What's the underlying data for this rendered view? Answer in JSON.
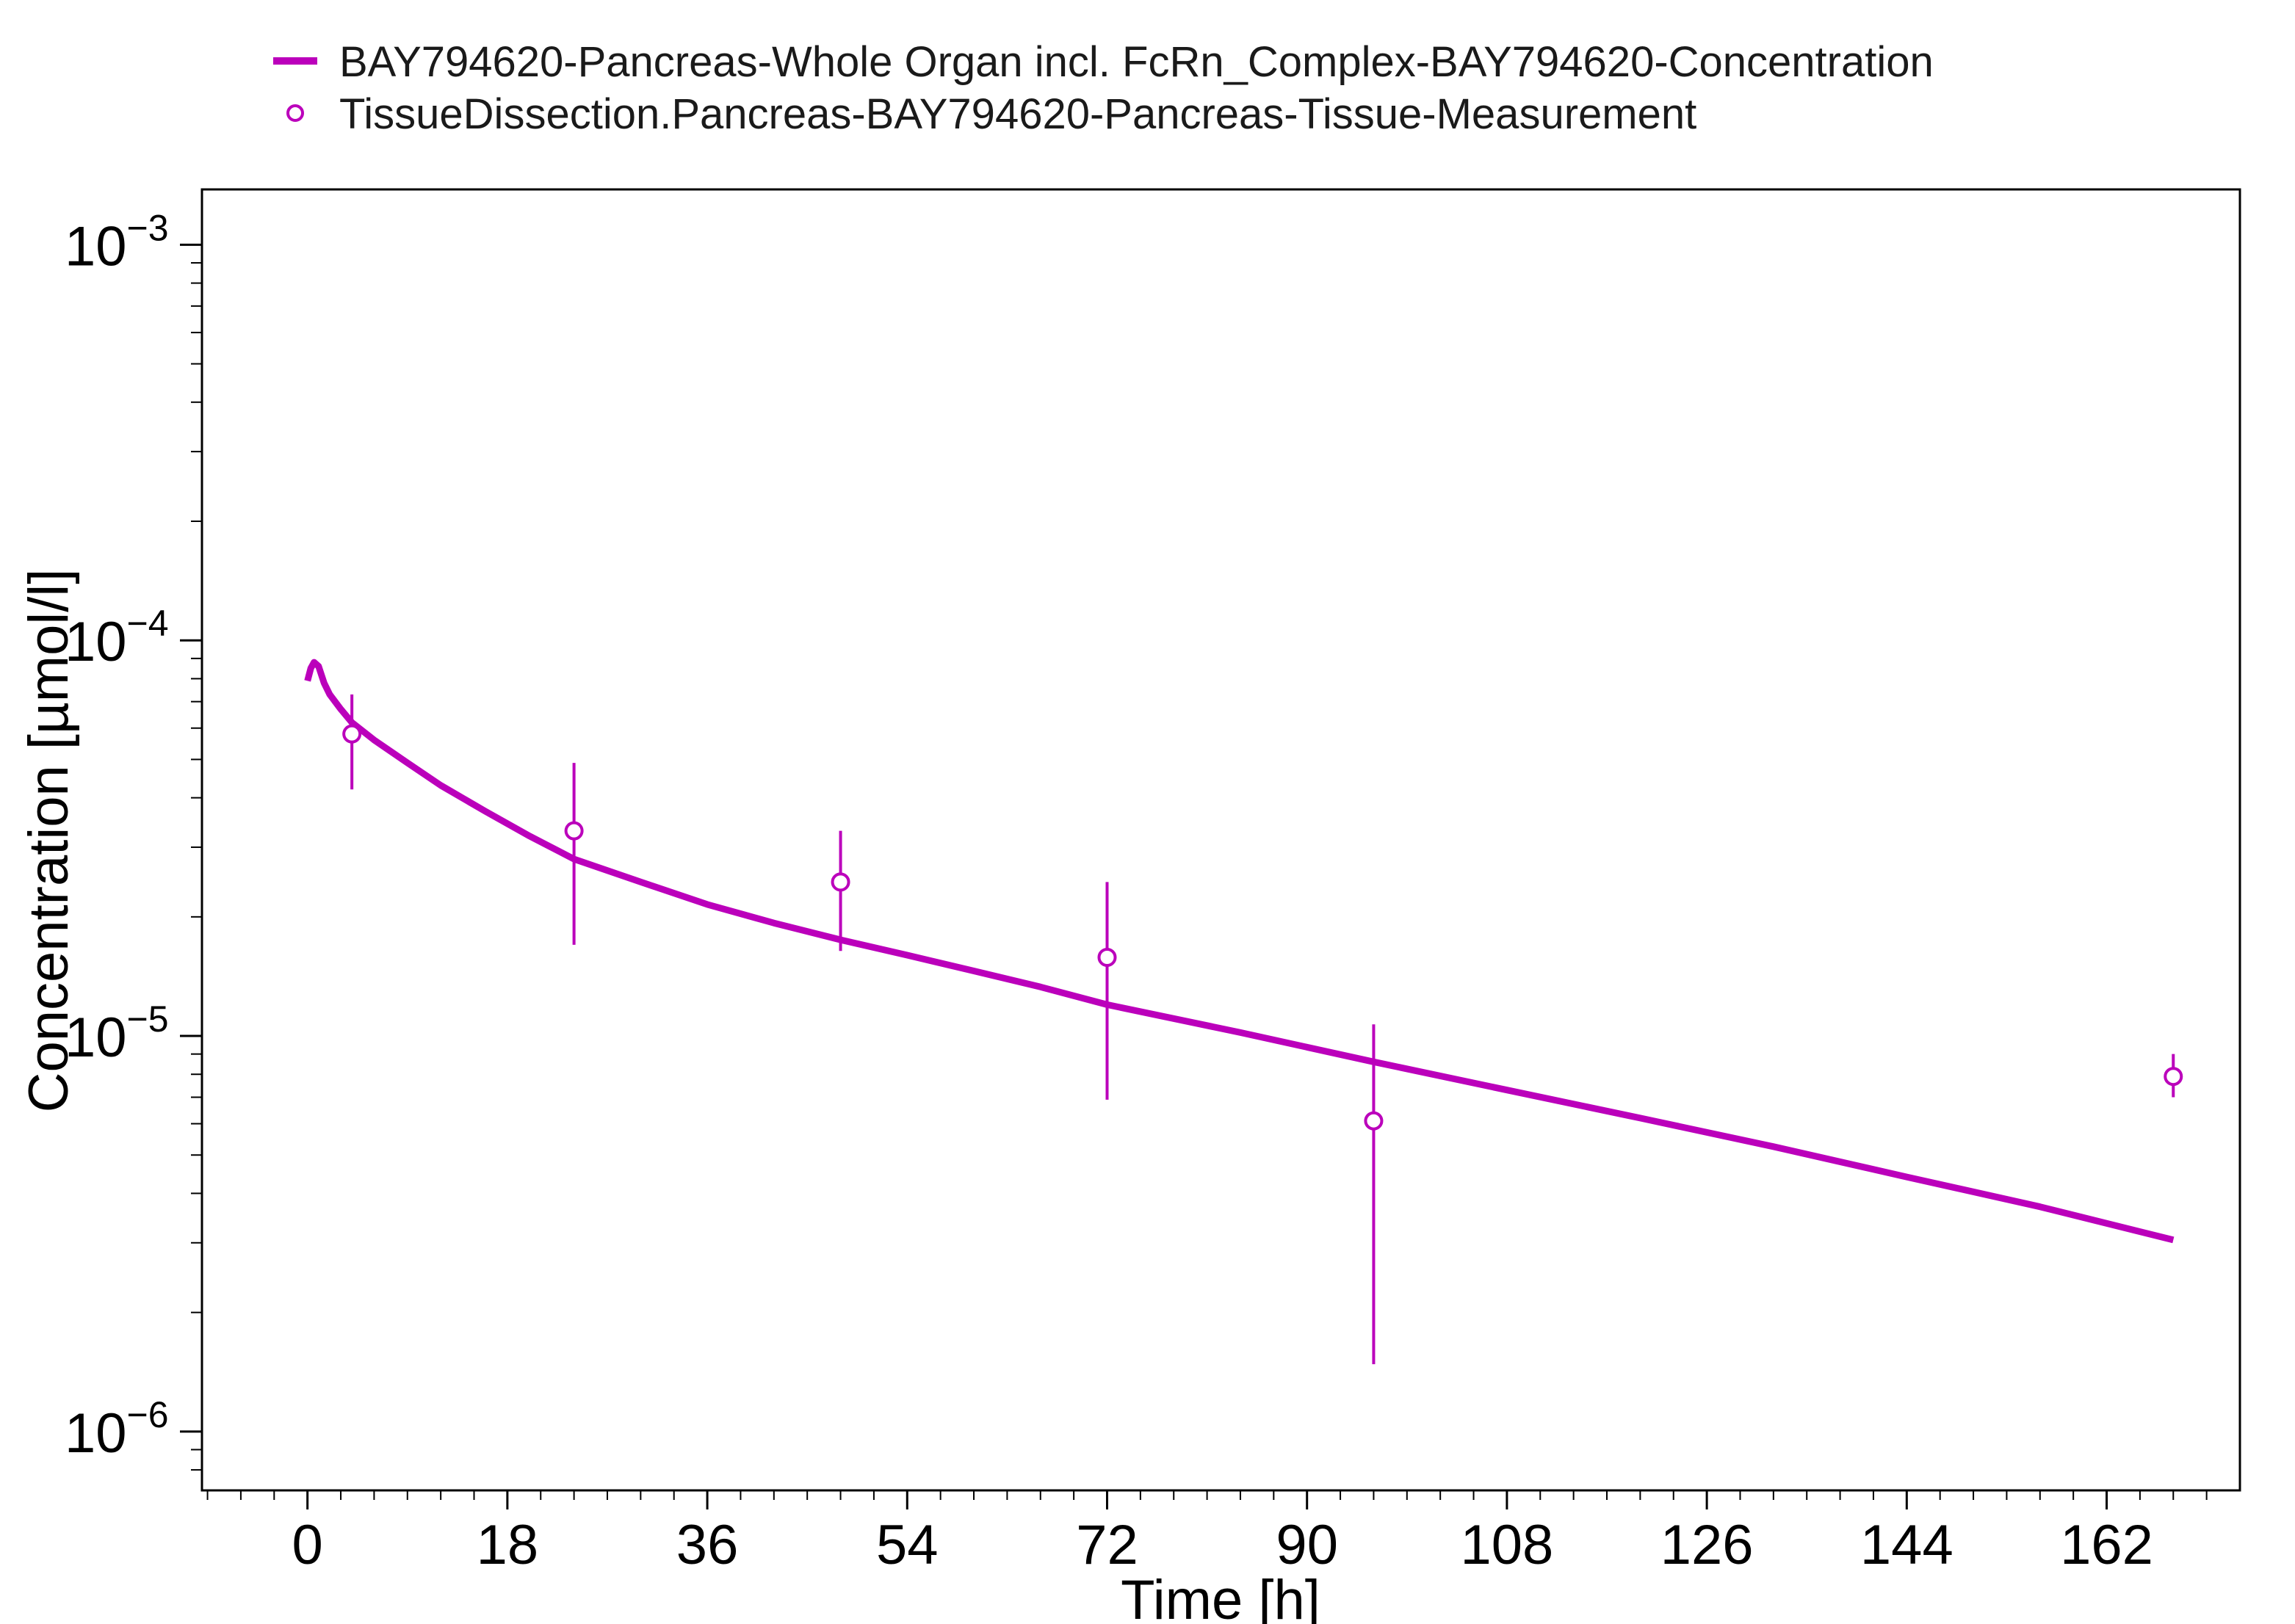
{
  "chart_data": {
    "type": "line",
    "title": "",
    "xlabel": "Time [h]",
    "ylabel": "Concentration [µmol/l]",
    "yscale": "log",
    "xlim": [
      -9.5,
      174
    ],
    "ylim": [
      7.1e-07,
      0.00138
    ],
    "grid": false,
    "legend_position": "top",
    "x_ticks": [
      0,
      18,
      36,
      54,
      72,
      90,
      108,
      126,
      144,
      162
    ],
    "y_ticks": [
      {
        "value": 1e-06,
        "mantissa": "10",
        "exponent": "−6"
      },
      {
        "value": 1e-05,
        "mantissa": "10",
        "exponent": "−5"
      },
      {
        "value": 0.0001,
        "mantissa": "10",
        "exponent": "−4"
      },
      {
        "value": 0.001,
        "mantissa": "10",
        "exponent": "−3"
      }
    ],
    "series": [
      {
        "name": "BAY794620-Pancreas-Whole Organ incl. FcRn_Complex-BAY794620-Concentration",
        "kind": "line",
        "color": "#bb00bb",
        "x": [
          0,
          0.3,
          0.6,
          1.0,
          1.5,
          2.0,
          3.0,
          4.0,
          6.0,
          9.0,
          12.0,
          16.0,
          20.0,
          24.0,
          30.0,
          36.0,
          42.0,
          48.0,
          54.0,
          60.0,
          66.0,
          72.0,
          84.0,
          96.0,
          108.0,
          120.0,
          132.0,
          144.0,
          156.0,
          168.0
        ],
        "y": [
          7.9e-05,
          8.5e-05,
          8.8e-05,
          8.6e-05,
          7.8e-05,
          7.3e-05,
          6.7e-05,
          6.2e-05,
          5.6e-05,
          4.9e-05,
          4.3e-05,
          3.7e-05,
          3.2e-05,
          2.8e-05,
          2.45e-05,
          2.15e-05,
          1.93e-05,
          1.75e-05,
          1.6e-05,
          1.46e-05,
          1.33e-05,
          1.2e-05,
          1.02e-05,
          8.6e-06,
          7.3e-06,
          6.2e-06,
          5.25e-06,
          4.4e-06,
          3.7e-06,
          3.05e-06
        ]
      },
      {
        "name": "TissueDissection.Pancreas-BAY794620-Pancreas-Tissue-Measurement",
        "kind": "scatter",
        "marker": "open-circle",
        "color": "#bb00bb",
        "x": [
          4,
          24,
          48,
          72,
          96,
          168
        ],
        "y": [
          5.8e-05,
          3.3e-05,
          2.45e-05,
          1.58e-05,
          6.1e-06,
          7.9e-06
        ],
        "error_low": [
          4.2e-05,
          1.7e-05,
          1.64e-05,
          6.9e-06,
          1.48e-06,
          7e-06
        ],
        "error_high": [
          7.3e-05,
          4.9e-05,
          3.3e-05,
          2.45e-05,
          1.07e-05,
          9e-06
        ]
      }
    ]
  }
}
